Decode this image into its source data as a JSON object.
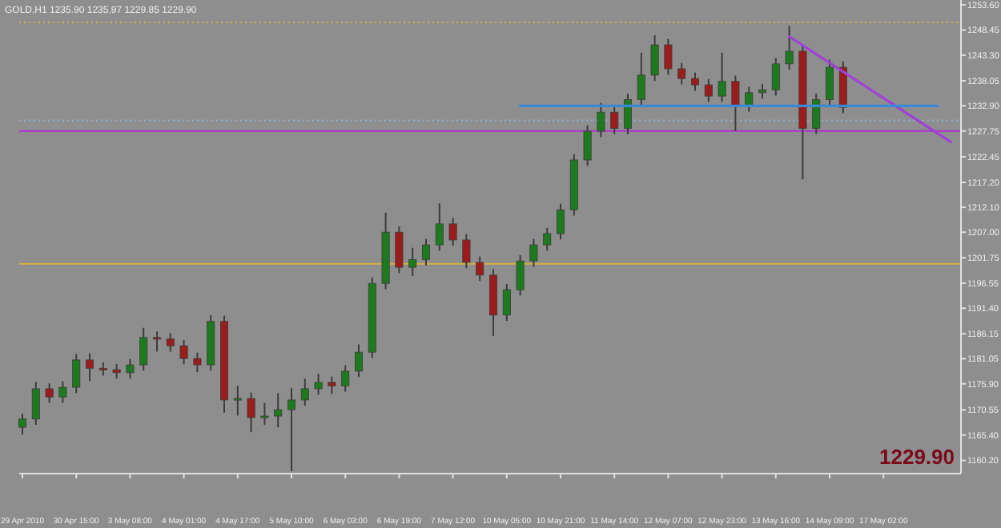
{
  "chart_data": {
    "type": "candlestick",
    "title": "GOLD,H1  1235.90 1235.97 1229.85 1229.90",
    "categories": [
      "29 Apr 2010",
      null,
      null,
      null,
      "30 Apr 15:00",
      null,
      null,
      null,
      "3 May 08:00",
      null,
      null,
      null,
      "4 May 01:00",
      null,
      null,
      null,
      "4 May 17:00",
      null,
      null,
      null,
      "5 May 10:00",
      null,
      null,
      null,
      "6 May 03:00",
      null,
      null,
      null,
      "6 May 19:00",
      null,
      null,
      null,
      "7 May 12:00",
      null,
      null,
      null,
      "10 May 05:00",
      null,
      null,
      null,
      "10 May 21:00",
      null,
      null,
      null,
      "11 May 14:00",
      null,
      null,
      null,
      "12 May 07:00",
      null,
      null,
      null,
      "12 May 23:00",
      null,
      null,
      null,
      "13 May 16:00",
      null,
      null,
      null,
      "14 May 09:00",
      null,
      null,
      null,
      "17 May 02:00",
      null,
      null,
      null,
      null,
      null
    ],
    "ohlc": [
      [
        1167.0,
        1169.8,
        1165.5,
        1168.7
      ],
      [
        1168.7,
        1176.3,
        1167.5,
        1174.9
      ],
      [
        1174.9,
        1176.0,
        1172.0,
        1173.2
      ],
      [
        1173.2,
        1176.4,
        1172.0,
        1175.2
      ],
      [
        1175.2,
        1182.0,
        1174.0,
        1180.8
      ],
      [
        1180.8,
        1182.2,
        1176.5,
        1179.1
      ],
      [
        1179.1,
        1180.3,
        1177.6,
        1178.8
      ],
      [
        1178.8,
        1180.0,
        1177.0,
        1178.2
      ],
      [
        1178.2,
        1181.0,
        1177.0,
        1179.8
      ],
      [
        1179.8,
        1187.4,
        1178.6,
        1185.4
      ],
      [
        1185.4,
        1186.6,
        1182.5,
        1185.1
      ],
      [
        1185.1,
        1186.3,
        1182.5,
        1183.7
      ],
      [
        1183.7,
        1184.9,
        1179.9,
        1181.1
      ],
      [
        1181.1,
        1182.3,
        1178.3,
        1179.8
      ],
      [
        1179.8,
        1190.0,
        1178.6,
        1188.7
      ],
      [
        1188.7,
        1189.9,
        1170.0,
        1172.6
      ],
      [
        1172.6,
        1175.5,
        1169.4,
        1172.9
      ],
      [
        1172.9,
        1174.1,
        1166.0,
        1169.0
      ],
      [
        1169.0,
        1172.0,
        1167.5,
        1169.3
      ],
      [
        1169.3,
        1174.0,
        1167.0,
        1170.6
      ],
      [
        1170.6,
        1175.0,
        1158.0,
        1172.6
      ],
      [
        1172.6,
        1177.0,
        1171.4,
        1174.9
      ],
      [
        1174.9,
        1178.0,
        1173.7,
        1176.2
      ],
      [
        1176.2,
        1177.4,
        1173.8,
        1175.5
      ],
      [
        1175.5,
        1179.7,
        1174.3,
        1178.5
      ],
      [
        1178.5,
        1184.0,
        1177.3,
        1182.4
      ],
      [
        1182.4,
        1197.7,
        1181.2,
        1196.5
      ],
      [
        1196.5,
        1211.0,
        1195.3,
        1207.0
      ],
      [
        1207.0,
        1208.2,
        1198.6,
        1199.8
      ],
      [
        1199.8,
        1203.8,
        1198.0,
        1201.4
      ],
      [
        1201.4,
        1205.6,
        1200.2,
        1204.4
      ],
      [
        1204.4,
        1212.9,
        1203.2,
        1208.7
      ],
      [
        1208.7,
        1209.9,
        1204.2,
        1205.4
      ],
      [
        1205.4,
        1206.6,
        1199.6,
        1200.8
      ],
      [
        1200.8,
        1202.0,
        1197.0,
        1198.2
      ],
      [
        1198.2,
        1199.4,
        1185.7,
        1190.0
      ],
      [
        1190.0,
        1196.4,
        1188.8,
        1195.2
      ],
      [
        1195.2,
        1202.3,
        1194.0,
        1201.1
      ],
      [
        1201.1,
        1205.6,
        1199.9,
        1204.4
      ],
      [
        1204.4,
        1207.9,
        1203.2,
        1206.7
      ],
      [
        1206.7,
        1212.8,
        1205.5,
        1211.6
      ],
      [
        1211.6,
        1223.0,
        1210.4,
        1221.8
      ],
      [
        1221.8,
        1228.9,
        1220.6,
        1227.7
      ],
      [
        1227.7,
        1233.5,
        1226.5,
        1231.6
      ],
      [
        1231.6,
        1232.8,
        1227.1,
        1228.3
      ],
      [
        1228.3,
        1235.4,
        1227.1,
        1234.2
      ],
      [
        1234.2,
        1243.8,
        1233.0,
        1239.2
      ],
      [
        1239.2,
        1247.4,
        1238.0,
        1245.4
      ],
      [
        1245.4,
        1246.6,
        1239.3,
        1240.5
      ],
      [
        1240.5,
        1241.7,
        1237.3,
        1238.5
      ],
      [
        1238.5,
        1239.7,
        1236.0,
        1237.2
      ],
      [
        1237.2,
        1238.4,
        1233.7,
        1234.9
      ],
      [
        1234.9,
        1243.8,
        1233.7,
        1237.9
      ],
      [
        1237.9,
        1239.1,
        1227.7,
        1232.9
      ],
      [
        1232.9,
        1236.8,
        1231.7,
        1235.6
      ],
      [
        1235.6,
        1237.4,
        1234.4,
        1236.2
      ],
      [
        1236.2,
        1242.7,
        1235.0,
        1241.5
      ],
      [
        1241.5,
        1249.3,
        1240.3,
        1244.1
      ],
      [
        1244.1,
        1245.3,
        1217.8,
        1228.3
      ],
      [
        1228.3,
        1235.4,
        1227.1,
        1234.2
      ],
      [
        1234.2,
        1242.4,
        1233.0,
        1240.8
      ],
      [
        1240.8,
        1242.0,
        1231.4,
        1232.6
      ],
      null,
      null,
      null,
      null,
      null,
      null,
      null,
      null
    ],
    "series": [
      {
        "type": "line",
        "color": "#a040d8",
        "values": [
          null,
          null,
          null,
          null,
          null,
          null,
          null,
          null,
          null,
          null,
          null,
          null,
          null,
          null,
          null,
          null,
          null,
          null,
          null,
          null,
          null,
          null,
          null,
          null,
          null,
          null,
          null,
          null,
          null,
          null,
          null,
          null,
          null,
          null,
          null,
          null,
          null,
          null,
          null,
          null,
          null,
          null,
          null,
          null,
          null,
          null,
          null,
          null,
          null,
          null,
          null,
          null,
          null,
          null,
          null,
          null,
          null,
          1247.1,
          null,
          null,
          null,
          null,
          null,
          null,
          null,
          null,
          null,
          null,
          null,
          1225.5
        ]
      },
      {
        "type": "line",
        "color": "#3a8ad8",
        "values": [
          null,
          null,
          null,
          null,
          null,
          null,
          null,
          null,
          null,
          null,
          null,
          null,
          null,
          null,
          null,
          null,
          null,
          null,
          null,
          null,
          null,
          null,
          null,
          null,
          null,
          null,
          null,
          null,
          null,
          null,
          null,
          null,
          null,
          null,
          null,
          null,
          null,
          1232.9,
          null,
          null,
          null,
          null,
          null,
          null,
          null,
          null,
          null,
          null,
          null,
          null,
          null,
          null,
          null,
          null,
          null,
          null,
          null,
          null,
          null,
          null,
          null,
          null,
          null,
          null,
          null,
          null,
          null,
          null,
          1232.9,
          null
        ]
      }
    ],
    "ylim": [
      1157.5,
      1254.6
    ],
    "yticks": [
      {
        "value": 1160.2,
        "label": "1160.20"
      },
      {
        "value": 1165.4,
        "label": "1165.40"
      },
      {
        "value": 1170.55,
        "label": "1170.55"
      },
      {
        "value": 1175.9,
        "label": "1175.90"
      },
      {
        "value": 1181.05,
        "label": "1181.05"
      },
      {
        "value": 1186.15,
        "label": "1186.15"
      },
      {
        "value": 1191.4,
        "label": "1191.40"
      },
      {
        "value": 1196.55,
        "label": "1196.55"
      },
      {
        "value": 1201.75,
        "label": "1201.75"
      },
      {
        "value": 1207,
        "label": "1207.00"
      },
      {
        "value": 1212.1,
        "label": "1212.10"
      },
      {
        "value": 1217.2,
        "label": "1217.20"
      },
      {
        "value": 1222.45,
        "label": "1222.45"
      },
      {
        "value": 1227.75,
        "label": "1227.75"
      },
      {
        "value": 1232.9,
        "label": "1232.90"
      },
      {
        "value": 1238.05,
        "label": "1238.05"
      },
      {
        "value": 1243.3,
        "label": "1243.30"
      },
      {
        "value": 1248.45,
        "label": "1248.45"
      },
      {
        "value": 1253.6,
        "label": "1253.60"
      }
    ],
    "ref_lines": [
      {
        "axis": "y",
        "value": 1227.75,
        "color": "#b030d0"
      },
      {
        "axis": "y",
        "value": 1229.9,
        "color": "#8fb0d0",
        "line_style": "dotted"
      },
      {
        "axis": "y",
        "value": 1200.5,
        "color": "#d4b040"
      },
      {
        "axis": "y",
        "value": 1250.0,
        "color": "#d4b040",
        "line_style": "dotted"
      }
    ],
    "annotations": [
      "1229.90"
    ],
    "grid": false
  }
}
